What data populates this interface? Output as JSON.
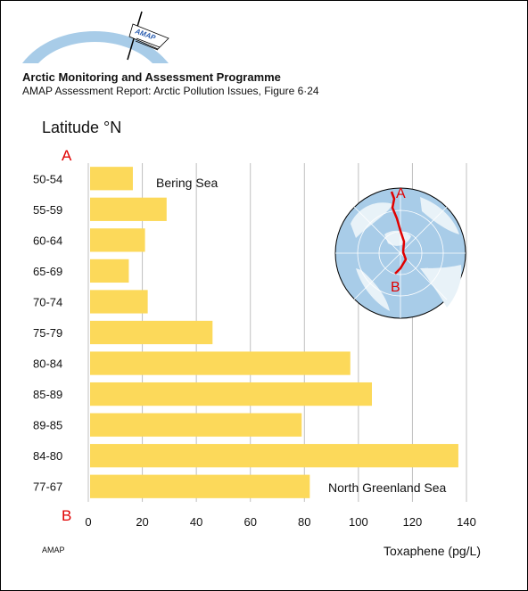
{
  "header": {
    "org_title": "Arctic Monitoring and Assessment Programme",
    "report_title": "AMAP Assessment Report: Arctic Pollution Issues, Figure 6·24",
    "logo_text": "AMAP",
    "footer_label": "AMAP"
  },
  "colors": {
    "bar": "#fcd95a",
    "grid": "#c0c0c0",
    "marker": "#e00000",
    "ocean": "#a8cce8",
    "land": "#e8f2f8"
  },
  "chart_data": {
    "type": "bar",
    "orientation": "horizontal",
    "ylabel": "Latitude °N",
    "xlabel": "Toxaphene (pg/L)",
    "categories": [
      "50-54",
      "55-59",
      "60-64",
      "65-69",
      "70-74",
      "75-79",
      "80-84",
      "85-89",
      "89-85",
      "84-80",
      "77-67"
    ],
    "values": [
      16.5,
      29,
      21,
      15,
      22,
      46,
      97,
      105,
      79,
      137,
      82
    ],
    "xlim": [
      0,
      140
    ],
    "xticks": [
      0,
      20,
      40,
      60,
      80,
      100,
      120,
      140
    ],
    "grid": true,
    "start_marker": "A",
    "end_marker": "B",
    "annotations": {
      "top": "Bering Sea",
      "bottom": "North Greenland Sea"
    },
    "inset_map": {
      "label_a": "A",
      "label_b": "B"
    }
  }
}
